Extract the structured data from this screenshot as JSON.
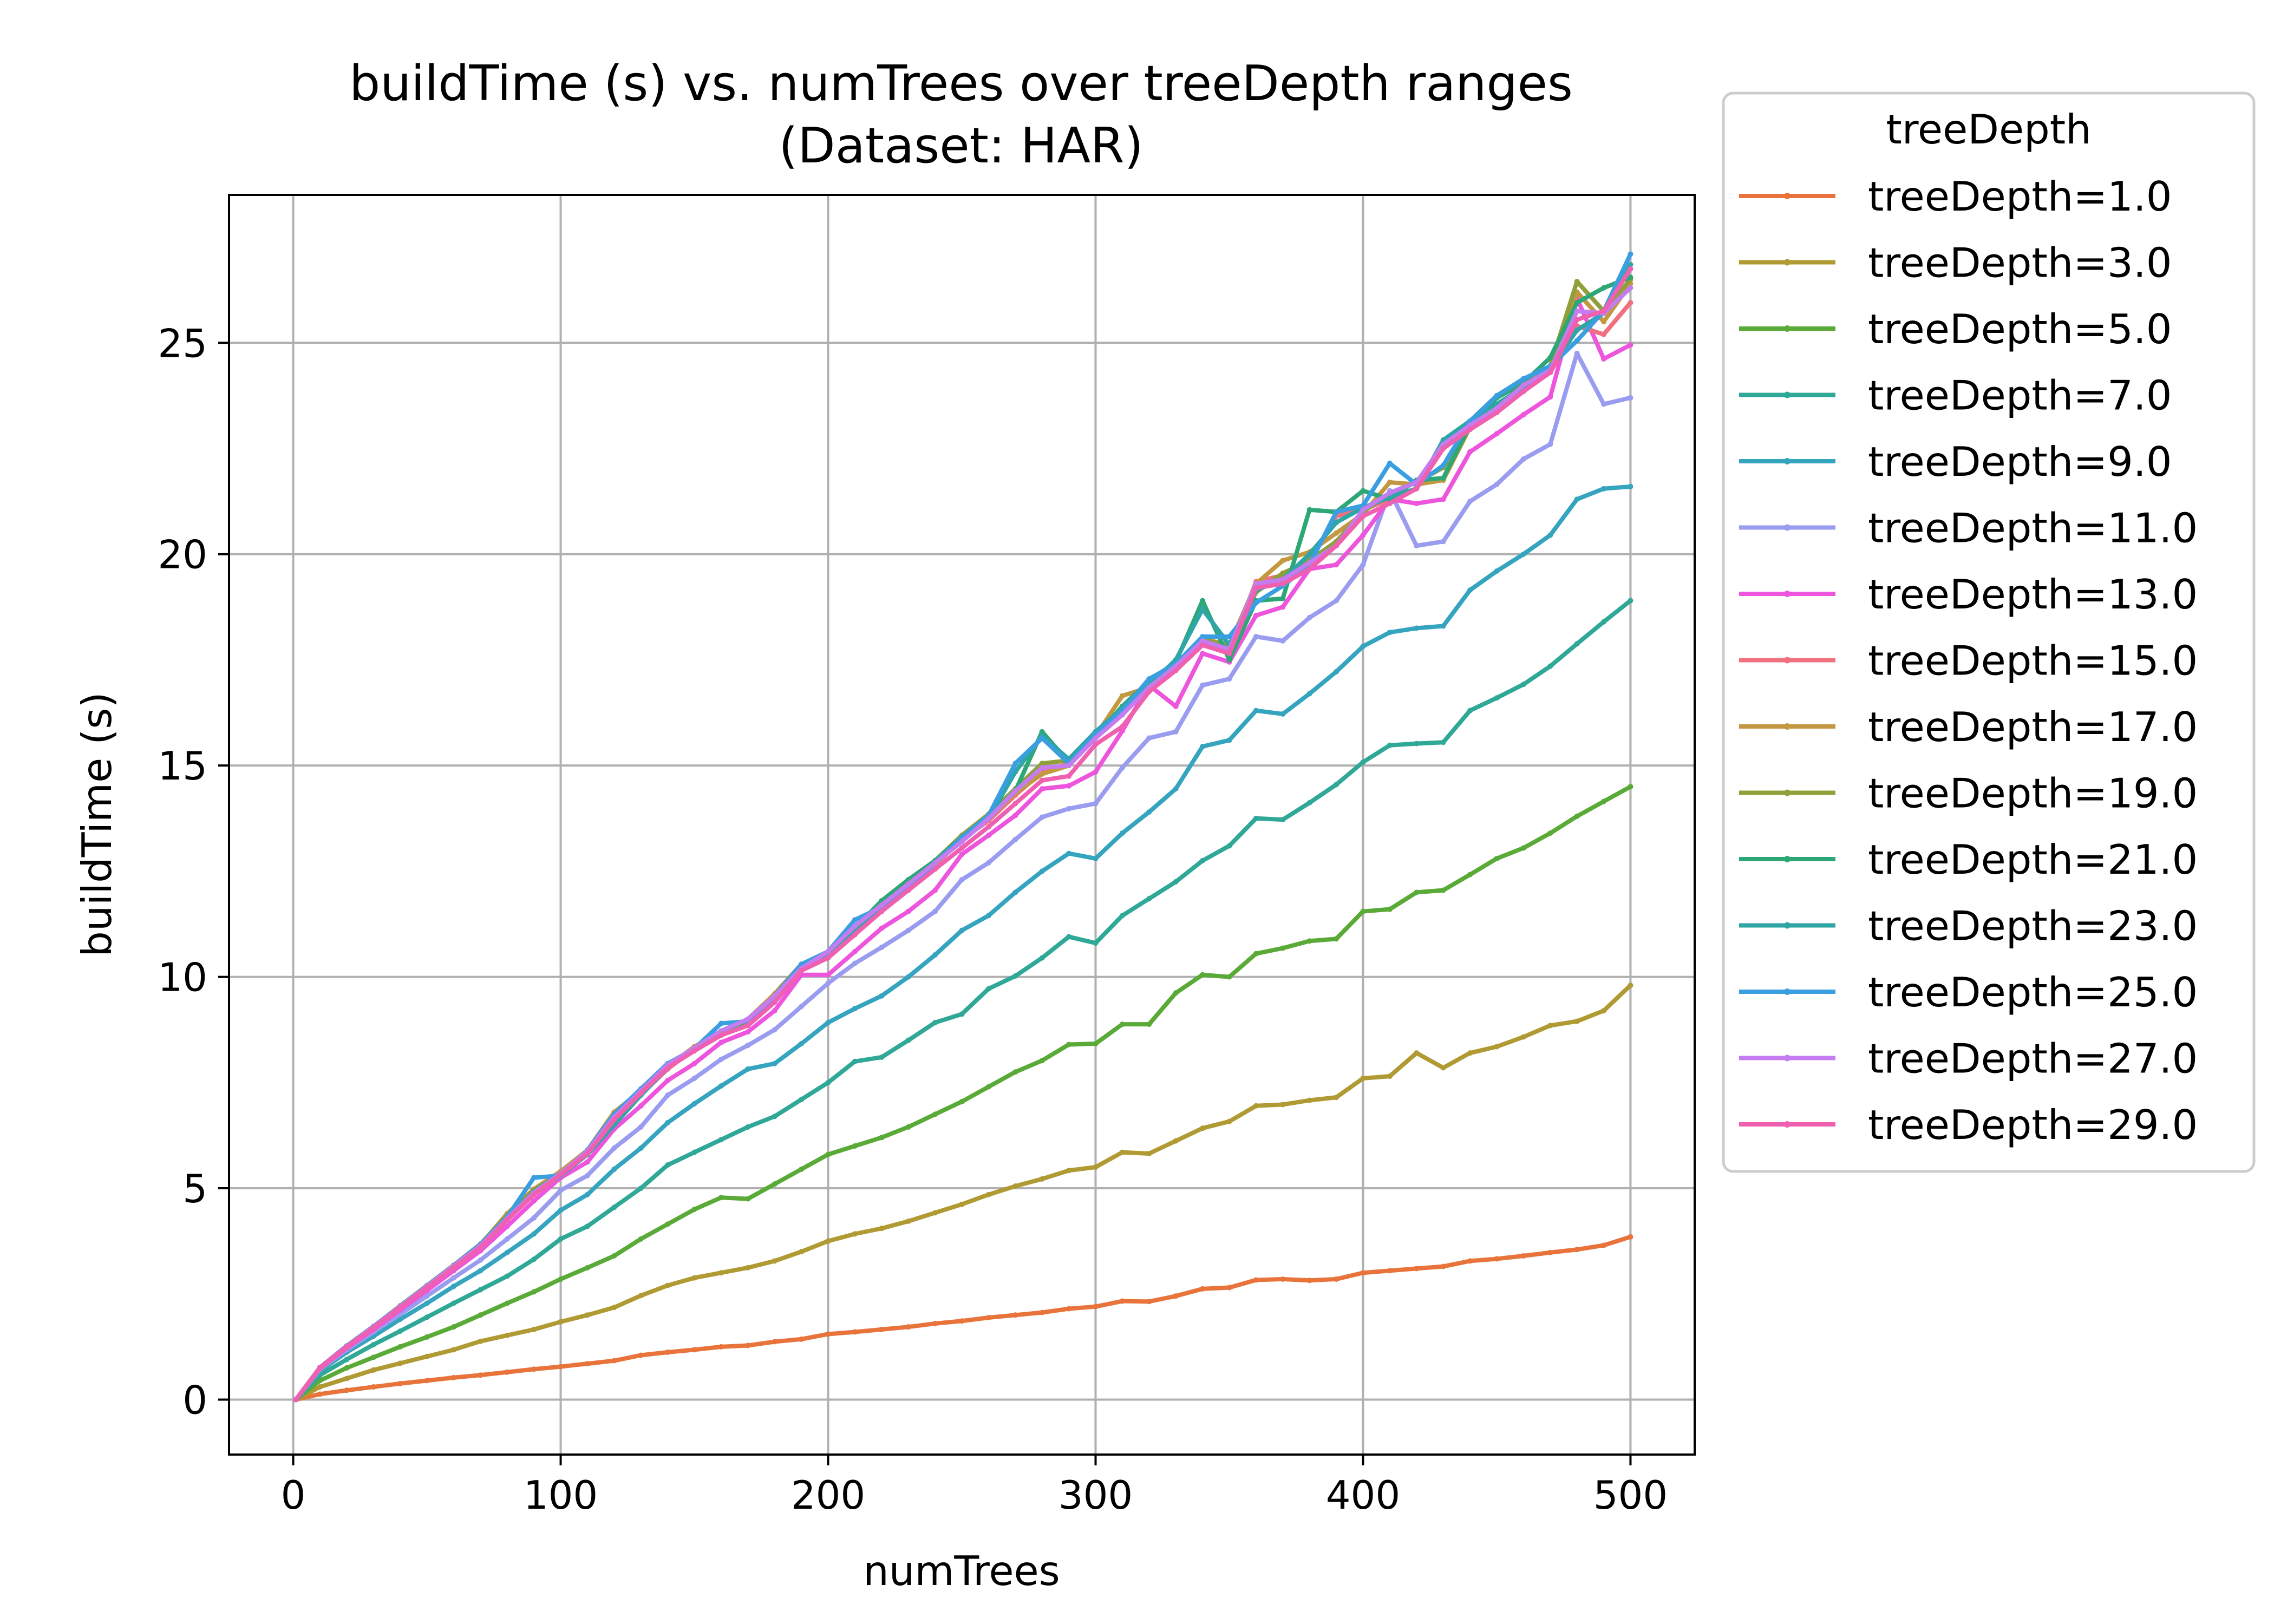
{
  "chart_data": {
    "type": "line",
    "title": "buildTime (s) vs. numTrees over treeDepth ranges",
    "subtitle": "(Dataset: HAR)",
    "xlabel": "numTrees",
    "ylabel": "buildTime (s)",
    "xlim": [
      -24,
      524
    ],
    "ylim": [
      -1.3,
      28.5
    ],
    "xticks": [
      0,
      100,
      200,
      300,
      400,
      500
    ],
    "yticks": [
      0,
      5,
      10,
      15,
      20,
      25
    ],
    "grid": true,
    "legend_title": "treeDepth",
    "legend_position": "outside-right",
    "x": [
      1,
      10,
      20,
      30,
      40,
      50,
      60,
      70,
      80,
      90,
      100,
      110,
      120,
      130,
      140,
      150,
      160,
      170,
      180,
      190,
      200,
      210,
      220,
      230,
      240,
      250,
      260,
      270,
      280,
      290,
      300,
      310,
      320,
      330,
      340,
      350,
      360,
      370,
      380,
      390,
      400,
      410,
      420,
      430,
      440,
      450,
      460,
      470,
      480,
      490,
      500
    ],
    "series": [
      {
        "name": "treeDepth=1.0",
        "color": "#e8743b",
        "values": [
          0.0,
          0.13,
          0.22,
          0.3,
          0.38,
          0.45,
          0.52,
          0.58,
          0.65,
          0.72,
          0.78,
          0.85,
          0.92,
          1.05,
          1.12,
          1.18,
          1.25,
          1.28,
          1.37,
          1.43,
          1.55,
          1.6,
          1.66,
          1.72,
          1.8,
          1.86,
          1.94,
          2.0,
          2.06,
          2.15,
          2.2,
          2.33,
          2.32,
          2.45,
          2.62,
          2.65,
          2.83,
          2.85,
          2.82,
          2.85,
          3.0,
          3.05,
          3.1,
          3.15,
          3.28,
          3.33,
          3.4,
          3.48,
          3.55,
          3.65,
          3.85
        ]
      },
      {
        "name": "treeDepth=3.0",
        "color": "#b09a33",
        "values": [
          0.0,
          0.3,
          0.5,
          0.7,
          0.86,
          1.02,
          1.18,
          1.38,
          1.52,
          1.66,
          1.84,
          2.0,
          2.18,
          2.46,
          2.7,
          2.88,
          3.0,
          3.12,
          3.28,
          3.5,
          3.75,
          3.92,
          4.05,
          4.22,
          4.42,
          4.62,
          4.85,
          5.05,
          5.22,
          5.42,
          5.5,
          5.85,
          5.82,
          6.12,
          6.42,
          6.58,
          6.95,
          6.98,
          7.08,
          7.15,
          7.6,
          7.65,
          8.2,
          7.85,
          8.2,
          8.35,
          8.58,
          8.85,
          8.95,
          9.2,
          9.8
        ]
      },
      {
        "name": "treeDepth=5.0",
        "color": "#5aaa38",
        "values": [
          0.0,
          0.45,
          0.75,
          1.0,
          1.25,
          1.48,
          1.72,
          2.0,
          2.28,
          2.55,
          2.85,
          3.12,
          3.4,
          3.8,
          4.15,
          4.5,
          4.78,
          4.75,
          5.1,
          5.45,
          5.8,
          6.0,
          6.2,
          6.45,
          6.75,
          7.05,
          7.4,
          7.75,
          8.02,
          8.4,
          8.42,
          8.88,
          8.88,
          9.62,
          10.05,
          10.0,
          10.55,
          10.68,
          10.85,
          10.9,
          11.55,
          11.6,
          12.0,
          12.05,
          12.42,
          12.8,
          13.05,
          13.4,
          13.8,
          14.15,
          14.5
        ]
      },
      {
        "name": "treeDepth=7.0",
        "color": "#2fa898",
        "values": [
          0.0,
          0.58,
          0.95,
          1.3,
          1.62,
          1.95,
          2.28,
          2.6,
          2.92,
          3.32,
          3.8,
          4.1,
          4.55,
          5.0,
          5.55,
          5.85,
          6.15,
          6.45,
          6.7,
          7.1,
          7.5,
          8.0,
          8.1,
          8.5,
          8.92,
          9.12,
          9.72,
          10.02,
          10.45,
          10.95,
          10.8,
          11.45,
          11.85,
          12.25,
          12.75,
          13.1,
          13.75,
          13.72,
          14.12,
          14.55,
          15.08,
          15.48,
          15.52,
          15.55,
          16.3,
          16.6,
          16.92,
          17.35,
          17.88,
          18.4,
          18.9
        ]
      },
      {
        "name": "treeDepth=9.0",
        "color": "#35a4bf",
        "values": [
          0.0,
          0.68,
          1.12,
          1.5,
          1.9,
          2.28,
          2.68,
          3.05,
          3.48,
          3.92,
          4.48,
          4.85,
          5.45,
          5.95,
          6.55,
          7.0,
          7.42,
          7.82,
          7.95,
          8.42,
          8.92,
          9.25,
          9.55,
          10.0,
          10.52,
          11.1,
          11.45,
          12.0,
          12.5,
          12.92,
          12.8,
          13.4,
          13.9,
          14.45,
          15.45,
          15.6,
          16.3,
          16.22,
          16.7,
          17.22,
          17.82,
          18.15,
          18.25,
          18.3,
          19.15,
          19.6,
          20.0,
          20.45,
          21.3,
          21.55,
          21.6
        ]
      },
      {
        "name": "treeDepth=11.0",
        "color": "#9a9cf0",
        "values": [
          0.0,
          0.72,
          1.18,
          1.6,
          2.02,
          2.45,
          2.88,
          3.3,
          3.8,
          4.3,
          4.95,
          5.3,
          5.95,
          6.45,
          7.2,
          7.6,
          8.05,
          8.38,
          8.75,
          9.3,
          9.85,
          10.32,
          10.7,
          11.1,
          11.55,
          12.3,
          12.7,
          13.25,
          13.78,
          13.98,
          14.1,
          14.95,
          15.65,
          15.8,
          16.9,
          17.05,
          18.05,
          17.95,
          18.5,
          18.9,
          19.75,
          21.5,
          20.2,
          20.3,
          21.25,
          21.65,
          22.25,
          22.6,
          24.75,
          23.55,
          23.7
        ]
      },
      {
        "name": "treeDepth=13.0",
        "color": "#ee55dd",
        "values": [
          0.0,
          0.74,
          1.22,
          1.66,
          2.12,
          2.58,
          3.05,
          3.52,
          4.1,
          4.7,
          5.25,
          5.62,
          6.4,
          6.95,
          7.55,
          7.95,
          8.45,
          8.7,
          9.2,
          10.05,
          10.05,
          10.6,
          11.15,
          11.55,
          12.05,
          12.9,
          13.35,
          13.82,
          14.45,
          14.52,
          14.85,
          15.82,
          16.9,
          16.4,
          17.65,
          17.45,
          18.55,
          18.75,
          19.65,
          19.75,
          20.45,
          21.3,
          21.2,
          21.3,
          22.42,
          22.85,
          23.3,
          23.72,
          26.05,
          24.62,
          24.95
        ]
      },
      {
        "name": "treeDepth=15.0",
        "color": "#f07080",
        "values": [
          0.0,
          0.75,
          1.25,
          1.7,
          2.18,
          2.65,
          3.12,
          3.6,
          4.28,
          4.92,
          5.38,
          5.85,
          6.75,
          7.22,
          7.82,
          8.3,
          8.65,
          8.95,
          9.55,
          10.25,
          10.5,
          11.1,
          11.62,
          12.08,
          12.65,
          13.25,
          13.7,
          14.3,
          14.85,
          15.05,
          15.75,
          16.32,
          16.95,
          17.35,
          17.9,
          17.7,
          19.35,
          19.5,
          19.85,
          20.9,
          21.05,
          21.3,
          21.55,
          22.55,
          23.05,
          23.4,
          23.92,
          24.3,
          25.4,
          25.2,
          25.95
        ]
      },
      {
        "name": "treeDepth=17.0",
        "color": "#c39840",
        "values": [
          0.0,
          0.76,
          1.26,
          1.72,
          2.2,
          2.68,
          3.16,
          3.66,
          4.4,
          4.98,
          5.4,
          5.9,
          6.8,
          7.3,
          7.88,
          8.35,
          8.7,
          9.0,
          9.6,
          10.3,
          10.55,
          11.15,
          11.6,
          12.1,
          12.65,
          13.3,
          13.75,
          14.35,
          14.8,
          15.0,
          15.7,
          16.65,
          16.85,
          17.4,
          18.0,
          17.85,
          19.3,
          19.85,
          20.05,
          20.5,
          20.95,
          21.7,
          21.65,
          21.75,
          23.0,
          23.4,
          23.95,
          24.35,
          26.2,
          25.5,
          26.4
        ]
      },
      {
        "name": "treeDepth=19.0",
        "color": "#8fa03a",
        "values": [
          0.0,
          0.76,
          1.27,
          1.73,
          2.22,
          2.7,
          3.18,
          3.68,
          4.35,
          4.95,
          5.35,
          5.88,
          6.7,
          7.28,
          7.85,
          8.32,
          8.68,
          8.95,
          9.55,
          10.28,
          10.55,
          11.12,
          11.75,
          12.25,
          12.75,
          13.35,
          13.85,
          14.45,
          15.05,
          15.12,
          15.75,
          16.3,
          16.95,
          17.35,
          18.0,
          17.8,
          19.1,
          19.55,
          19.85,
          20.3,
          21.0,
          21.45,
          21.7,
          22.05,
          23.0,
          23.5,
          24.0,
          24.45,
          26.45,
          25.75,
          26.5
        ]
      },
      {
        "name": "treeDepth=21.0",
        "color": "#2ea776",
        "values": [
          0.0,
          0.76,
          1.27,
          1.73,
          2.2,
          2.68,
          3.15,
          3.65,
          4.3,
          4.92,
          5.35,
          5.82,
          6.55,
          7.25,
          7.85,
          8.3,
          8.7,
          8.98,
          9.55,
          10.25,
          10.5,
          11.15,
          11.8,
          12.3,
          12.75,
          13.3,
          13.8,
          14.4,
          15.8,
          15.08,
          15.7,
          16.4,
          17.0,
          17.45,
          18.9,
          17.5,
          18.9,
          18.95,
          21.05,
          21.0,
          21.5,
          21.3,
          21.75,
          21.8,
          23.05,
          23.7,
          24.05,
          24.65,
          25.95,
          26.3,
          26.55
        ]
      },
      {
        "name": "treeDepth=23.0",
        "color": "#2fa6a6",
        "values": [
          0.0,
          0.76,
          1.26,
          1.72,
          2.2,
          2.66,
          3.14,
          3.62,
          4.28,
          4.88,
          5.3,
          5.8,
          6.5,
          7.2,
          7.85,
          8.3,
          8.72,
          9.0,
          9.52,
          10.25,
          10.55,
          11.15,
          11.62,
          12.15,
          12.7,
          13.25,
          13.75,
          14.85,
          15.7,
          15.15,
          15.8,
          16.35,
          16.9,
          17.5,
          18.7,
          17.85,
          19.15,
          19.4,
          20.0,
          20.75,
          21.1,
          21.35,
          21.55,
          22.7,
          23.15,
          23.55,
          23.95,
          24.4,
          25.3,
          25.7,
          26.85
        ]
      },
      {
        "name": "treeDepth=25.0",
        "color": "#3a9fe0",
        "values": [
          0.0,
          0.76,
          1.27,
          1.73,
          2.21,
          2.69,
          3.17,
          3.67,
          4.32,
          5.25,
          5.3,
          5.9,
          6.75,
          7.35,
          7.95,
          8.3,
          8.9,
          8.95,
          9.55,
          10.3,
          10.6,
          11.35,
          11.65,
          12.1,
          12.7,
          13.3,
          13.82,
          15.05,
          15.65,
          15.05,
          15.75,
          16.3,
          17.05,
          17.4,
          18.05,
          18.05,
          18.85,
          19.25,
          19.75,
          21.0,
          21.15,
          22.15,
          21.65,
          22.1,
          23.15,
          23.75,
          24.15,
          24.45,
          25.05,
          25.75,
          27.1
        ]
      },
      {
        "name": "treeDepth=27.0",
        "color": "#c47cf0",
        "values": [
          0.0,
          0.76,
          1.26,
          1.72,
          2.2,
          2.68,
          3.16,
          3.64,
          4.28,
          4.9,
          5.35,
          5.88,
          6.68,
          7.3,
          7.92,
          8.32,
          8.72,
          9.0,
          9.55,
          10.2,
          10.6,
          11.2,
          11.7,
          12.2,
          12.7,
          13.2,
          13.75,
          14.4,
          14.95,
          15.0,
          15.65,
          16.2,
          16.85,
          17.35,
          17.95,
          17.75,
          19.3,
          19.4,
          19.8,
          20.2,
          21.05,
          21.45,
          21.7,
          22.6,
          23.05,
          23.45,
          24.0,
          24.35,
          25.75,
          25.7,
          26.3
        ]
      },
      {
        "name": "treeDepth=29.0",
        "color": "#f060b0",
        "values": [
          0.0,
          0.75,
          1.25,
          1.7,
          2.18,
          2.65,
          3.12,
          3.6,
          4.25,
          4.85,
          5.32,
          5.82,
          6.62,
          7.25,
          7.85,
          8.25,
          8.62,
          8.85,
          9.4,
          10.15,
          10.45,
          11.0,
          11.55,
          12.05,
          12.55,
          13.05,
          13.55,
          14.1,
          14.65,
          14.75,
          15.5,
          15.92,
          16.75,
          17.25,
          17.85,
          17.65,
          19.2,
          19.3,
          19.65,
          20.2,
          20.9,
          21.2,
          21.55,
          22.5,
          22.95,
          23.35,
          23.85,
          24.3,
          25.55,
          25.75,
          26.75
        ]
      }
    ]
  }
}
